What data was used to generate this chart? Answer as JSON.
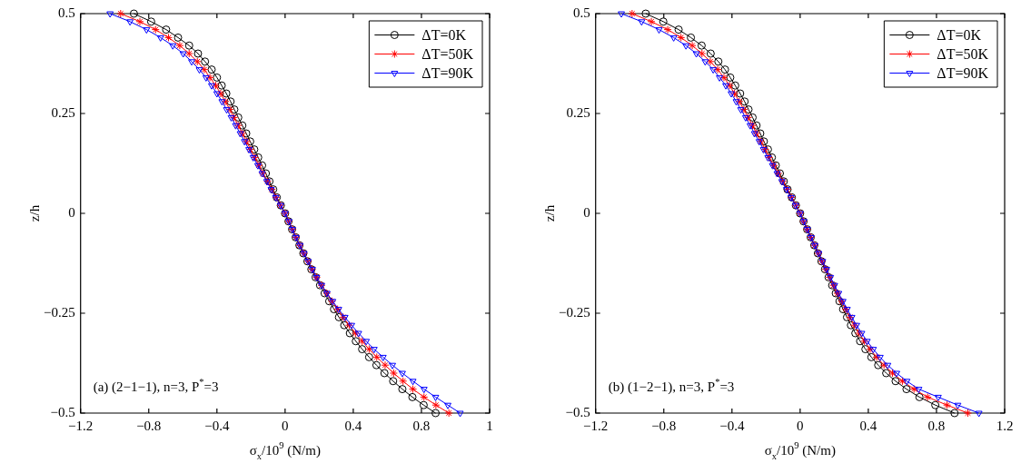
{
  "chart_data": [
    {
      "type": "line",
      "xlabel": "σ$_{x}$/10$^{9}$ (N/m)",
      "ylabel": "z/h",
      "xlim": [
        -1.2,
        1.2
      ],
      "xticks": [
        -1.2,
        -0.8,
        -0.4,
        0,
        0.4,
        0.8,
        {
          "value": 1.2,
          "label": "1"
        }
      ],
      "ylim": [
        -0.5,
        0.5
      ],
      "yticks": [
        -0.5,
        -0.25,
        0,
        0.25,
        0.5
      ],
      "legend": "top right",
      "annotations": [
        "(a) (2−1−1), n=3, P$^{*}$=3"
      ],
      "series": [
        {
          "name": "ΔT=0K",
          "color": "#000000",
          "marker": "circle",
          "x": [
            -0.887,
            -0.786,
            -0.698,
            -0.628,
            -0.563,
            -0.511,
            -0.47,
            -0.431,
            -0.4,
            -0.372,
            -0.345,
            -0.32,
            -0.298,
            -0.275,
            -0.251,
            -0.228,
            -0.205,
            -0.181,
            -0.158,
            -0.135,
            -0.113,
            -0.092,
            -0.07,
            -0.049,
            -0.025,
            0,
            0.02,
            0.041,
            0.062,
            0.084,
            0.107,
            0.131,
            0.154,
            0.179,
            0.205,
            0.232,
            0.259,
            0.287,
            0.316,
            0.347,
            0.38,
            0.415,
            0.452,
            0.493,
            0.536,
            0.583,
            0.634,
            0.688,
            0.747,
            0.813,
            0.883
          ],
          "values": [
            0.5,
            0.48,
            0.46,
            0.44,
            0.42,
            0.4,
            0.38,
            0.36,
            0.34,
            0.32,
            0.3,
            0.28,
            0.26,
            0.24,
            0.22,
            0.2,
            0.18,
            0.16,
            0.14,
            0.12,
            0.1,
            0.08,
            0.06,
            0.04,
            0.02,
            0,
            -0.02,
            -0.04,
            -0.06,
            -0.08,
            -0.1,
            -0.12,
            -0.14,
            -0.16,
            -0.18,
            -0.2,
            -0.22,
            -0.24,
            -0.26,
            -0.28,
            -0.3,
            -0.32,
            -0.34,
            -0.36,
            -0.38,
            -0.4,
            -0.42,
            -0.44,
            -0.46,
            -0.48,
            -0.5
          ]
        },
        {
          "name": "ΔT=50K",
          "color": "#ff0000",
          "marker": "cross",
          "x": [
            -0.965,
            -0.852,
            -0.76,
            -0.684,
            -0.618,
            -0.563,
            -0.515,
            -0.474,
            -0.441,
            -0.407,
            -0.378,
            -0.351,
            -0.324,
            -0.3,
            -0.275,
            -0.251,
            -0.226,
            -0.203,
            -0.177,
            -0.154,
            -0.131,
            -0.103,
            -0.078,
            -0.053,
            -0.027,
            0,
            0.021,
            0.043,
            0.064,
            0.086,
            0.11,
            0.135,
            0.158,
            0.185,
            0.214,
            0.244,
            0.275,
            0.308,
            0.341,
            0.376,
            0.413,
            0.452,
            0.493,
            0.538,
            0.587,
            0.637,
            0.692,
            0.75,
            0.815,
            0.885,
            0.961
          ],
          "values": [
            0.5,
            0.48,
            0.46,
            0.44,
            0.42,
            0.4,
            0.38,
            0.36,
            0.34,
            0.32,
            0.3,
            0.28,
            0.26,
            0.24,
            0.22,
            0.2,
            0.18,
            0.16,
            0.14,
            0.12,
            0.1,
            0.08,
            0.06,
            0.04,
            0.02,
            0,
            -0.02,
            -0.04,
            -0.06,
            -0.08,
            -0.1,
            -0.12,
            -0.14,
            -0.16,
            -0.18,
            -0.2,
            -0.22,
            -0.24,
            -0.26,
            -0.28,
            -0.3,
            -0.32,
            -0.34,
            -0.36,
            -0.38,
            -0.4,
            -0.42,
            -0.44,
            -0.46,
            -0.48,
            -0.5
          ]
        },
        {
          "name": "ΔT=90K",
          "color": "#0000ff",
          "marker": "triangle",
          "x": [
            -1.027,
            -0.91,
            -0.813,
            -0.731,
            -0.659,
            -0.598,
            -0.548,
            -0.503,
            -0.464,
            -0.431,
            -0.4,
            -0.37,
            -0.343,
            -0.316,
            -0.29,
            -0.263,
            -0.238,
            -0.212,
            -0.187,
            -0.16,
            -0.135,
            -0.107,
            -0.082,
            -0.055,
            -0.027,
            0,
            0.022,
            0.043,
            0.064,
            0.087,
            0.111,
            0.135,
            0.16,
            0.185,
            0.214,
            0.246,
            0.279,
            0.314,
            0.351,
            0.39,
            0.431,
            0.476,
            0.522,
            0.575,
            0.63,
            0.688,
            0.75,
            0.815,
            0.883,
            0.955,
            1.027
          ],
          "values": [
            0.5,
            0.48,
            0.46,
            0.44,
            0.42,
            0.4,
            0.38,
            0.36,
            0.34,
            0.32,
            0.3,
            0.28,
            0.26,
            0.24,
            0.22,
            0.2,
            0.18,
            0.16,
            0.14,
            0.12,
            0.1,
            0.08,
            0.06,
            0.04,
            0.02,
            0,
            -0.02,
            -0.04,
            -0.06,
            -0.08,
            -0.1,
            -0.12,
            -0.14,
            -0.16,
            -0.18,
            -0.2,
            -0.22,
            -0.24,
            -0.26,
            -0.28,
            -0.3,
            -0.32,
            -0.34,
            -0.36,
            -0.38,
            -0.4,
            -0.42,
            -0.44,
            -0.46,
            -0.48,
            -0.5
          ]
        }
      ]
    },
    {
      "type": "line",
      "xlabel": "σ$_{x}$/10$^{9}$ (N/m)",
      "ylabel": "z/h",
      "xlim": [
        -1.2,
        1.2
      ],
      "xticks": [
        -1.2,
        -0.8,
        -0.4,
        0,
        0.4,
        0.8,
        1.2
      ],
      "ylim": [
        -0.5,
        0.5
      ],
      "yticks": [
        -0.5,
        -0.25,
        0,
        0.25,
        0.5
      ],
      "legend": "top right",
      "annotations": [
        "(b) (1−2−1), n=3, P$^{*}$=3"
      ],
      "series": [
        {
          "name": "ΔT=0K",
          "color": "#000000",
          "marker": "circle",
          "x": [
            -0.906,
            -0.803,
            -0.713,
            -0.641,
            -0.578,
            -0.525,
            -0.48,
            -0.441,
            -0.41,
            -0.381,
            -0.352,
            -0.326,
            -0.303,
            -0.279,
            -0.256,
            -0.234,
            -0.213,
            -0.189,
            -0.166,
            -0.143,
            -0.119,
            -0.096,
            -0.074,
            -0.049,
            -0.025,
            0,
            0.02,
            0.041,
            0.062,
            0.083,
            0.104,
            0.125,
            0.146,
            0.167,
            0.188,
            0.209,
            0.231,
            0.252,
            0.275,
            0.298,
            0.324,
            0.352,
            0.383,
            0.418,
            0.458,
            0.505,
            0.56,
            0.624,
            0.7,
            0.793,
            0.906
          ],
          "values": [
            0.5,
            0.48,
            0.46,
            0.44,
            0.42,
            0.4,
            0.38,
            0.36,
            0.34,
            0.32,
            0.3,
            0.28,
            0.26,
            0.24,
            0.22,
            0.2,
            0.18,
            0.16,
            0.14,
            0.12,
            0.1,
            0.08,
            0.06,
            0.04,
            0.02,
            0,
            -0.02,
            -0.04,
            -0.06,
            -0.08,
            -0.1,
            -0.12,
            -0.14,
            -0.16,
            -0.18,
            -0.2,
            -0.22,
            -0.24,
            -0.26,
            -0.28,
            -0.3,
            -0.32,
            -0.34,
            -0.36,
            -0.38,
            -0.4,
            -0.42,
            -0.44,
            -0.46,
            -0.48,
            -0.5
          ]
        },
        {
          "name": "ΔT=50K",
          "color": "#ff0000",
          "marker": "cross",
          "x": [
            -0.986,
            -0.873,
            -0.777,
            -0.699,
            -0.633,
            -0.576,
            -0.527,
            -0.484,
            -0.447,
            -0.414,
            -0.385,
            -0.357,
            -0.33,
            -0.305,
            -0.279,
            -0.256,
            -0.23,
            -0.205,
            -0.182,
            -0.154,
            -0.129,
            -0.102,
            -0.076,
            -0.051,
            -0.025,
            0,
            0.02,
            0.041,
            0.063,
            0.085,
            0.107,
            0.129,
            0.151,
            0.173,
            0.196,
            0.219,
            0.243,
            0.267,
            0.292,
            0.318,
            0.346,
            0.377,
            0.411,
            0.449,
            0.492,
            0.542,
            0.6,
            0.668,
            0.748,
            0.862,
            0.984
          ],
          "values": [
            0.5,
            0.48,
            0.46,
            0.44,
            0.42,
            0.4,
            0.38,
            0.36,
            0.34,
            0.32,
            0.3,
            0.28,
            0.26,
            0.24,
            0.22,
            0.2,
            0.18,
            0.16,
            0.14,
            0.12,
            0.1,
            0.08,
            0.06,
            0.04,
            0.02,
            0,
            -0.02,
            -0.04,
            -0.06,
            -0.08,
            -0.1,
            -0.12,
            -0.14,
            -0.16,
            -0.18,
            -0.2,
            -0.22,
            -0.24,
            -0.26,
            -0.28,
            -0.3,
            -0.32,
            -0.34,
            -0.36,
            -0.38,
            -0.4,
            -0.42,
            -0.44,
            -0.46,
            -0.48,
            -0.5
          ]
        },
        {
          "name": "ΔT=90K",
          "color": "#0000ff",
          "marker": "triangle",
          "x": [
            -1.049,
            -0.93,
            -0.828,
            -0.742,
            -0.67,
            -0.609,
            -0.557,
            -0.51,
            -0.473,
            -0.436,
            -0.404,
            -0.375,
            -0.348,
            -0.32,
            -0.293,
            -0.268,
            -0.24,
            -0.215,
            -0.189,
            -0.162,
            -0.135,
            -0.107,
            -0.08,
            -0.053,
            -0.027,
            0,
            0.021,
            0.042,
            0.064,
            0.086,
            0.109,
            0.132,
            0.155,
            0.178,
            0.202,
            0.226,
            0.251,
            0.276,
            0.303,
            0.331,
            0.361,
            0.393,
            0.429,
            0.469,
            0.514,
            0.566,
            0.626,
            0.696,
            0.81,
            0.925,
            1.049
          ],
          "values": [
            0.5,
            0.48,
            0.46,
            0.44,
            0.42,
            0.4,
            0.38,
            0.36,
            0.34,
            0.32,
            0.3,
            0.28,
            0.26,
            0.24,
            0.22,
            0.2,
            0.18,
            0.16,
            0.14,
            0.12,
            0.1,
            0.08,
            0.06,
            0.04,
            0.02,
            0,
            -0.02,
            -0.04,
            -0.06,
            -0.08,
            -0.1,
            -0.12,
            -0.14,
            -0.16,
            -0.18,
            -0.2,
            -0.22,
            -0.24,
            -0.26,
            -0.28,
            -0.3,
            -0.32,
            -0.34,
            -0.36,
            -0.38,
            -0.4,
            -0.42,
            -0.44,
            -0.46,
            -0.48,
            -0.5
          ]
        }
      ]
    }
  ]
}
